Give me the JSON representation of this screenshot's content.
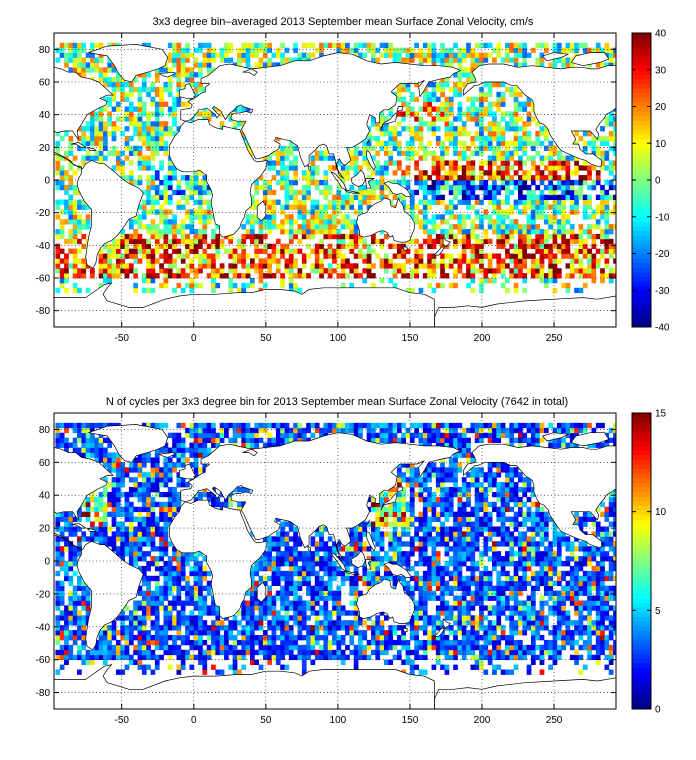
{
  "chart_data": [
    {
      "type": "heatmap",
      "title": "3x3 degree bin–averaged 2013 September mean Surface Zonal Velocity, cm/s",
      "xlim": [
        -97,
        293
      ],
      "ylim": [
        -90,
        90
      ],
      "xticks": [
        -50,
        0,
        50,
        100,
        150,
        200,
        250
      ],
      "yticks": [
        80,
        60,
        40,
        20,
        0,
        -20,
        -40,
        -60,
        -80
      ],
      "grid": true,
      "colorbar": {
        "min": -40,
        "max": 40,
        "ticks": [
          40,
          30,
          20,
          10,
          0,
          -10,
          -20,
          -30,
          -40
        ],
        "colormap": "jet"
      },
      "bin_size_deg": 3
    },
    {
      "type": "heatmap",
      "title": "N of cycles per 3x3 degree bin for 2013 September mean Surface Zonal Velocity (7642 in total)",
      "xlim": [
        -97,
        293
      ],
      "ylim": [
        -90,
        90
      ],
      "xticks": [
        -50,
        0,
        50,
        100,
        150,
        200,
        250
      ],
      "yticks": [
        80,
        60,
        40,
        20,
        0,
        -20,
        -40,
        -60,
        -80
      ],
      "grid": true,
      "colorbar": {
        "min": 0,
        "max": 15,
        "ticks": [
          15,
          10,
          5,
          0
        ],
        "colormap": "jet"
      },
      "total_cycles": 7642,
      "bin_size_deg": 3
    }
  ],
  "colors": {
    "frame": "#000000",
    "grid": "#000000",
    "land": "#ffffff"
  }
}
